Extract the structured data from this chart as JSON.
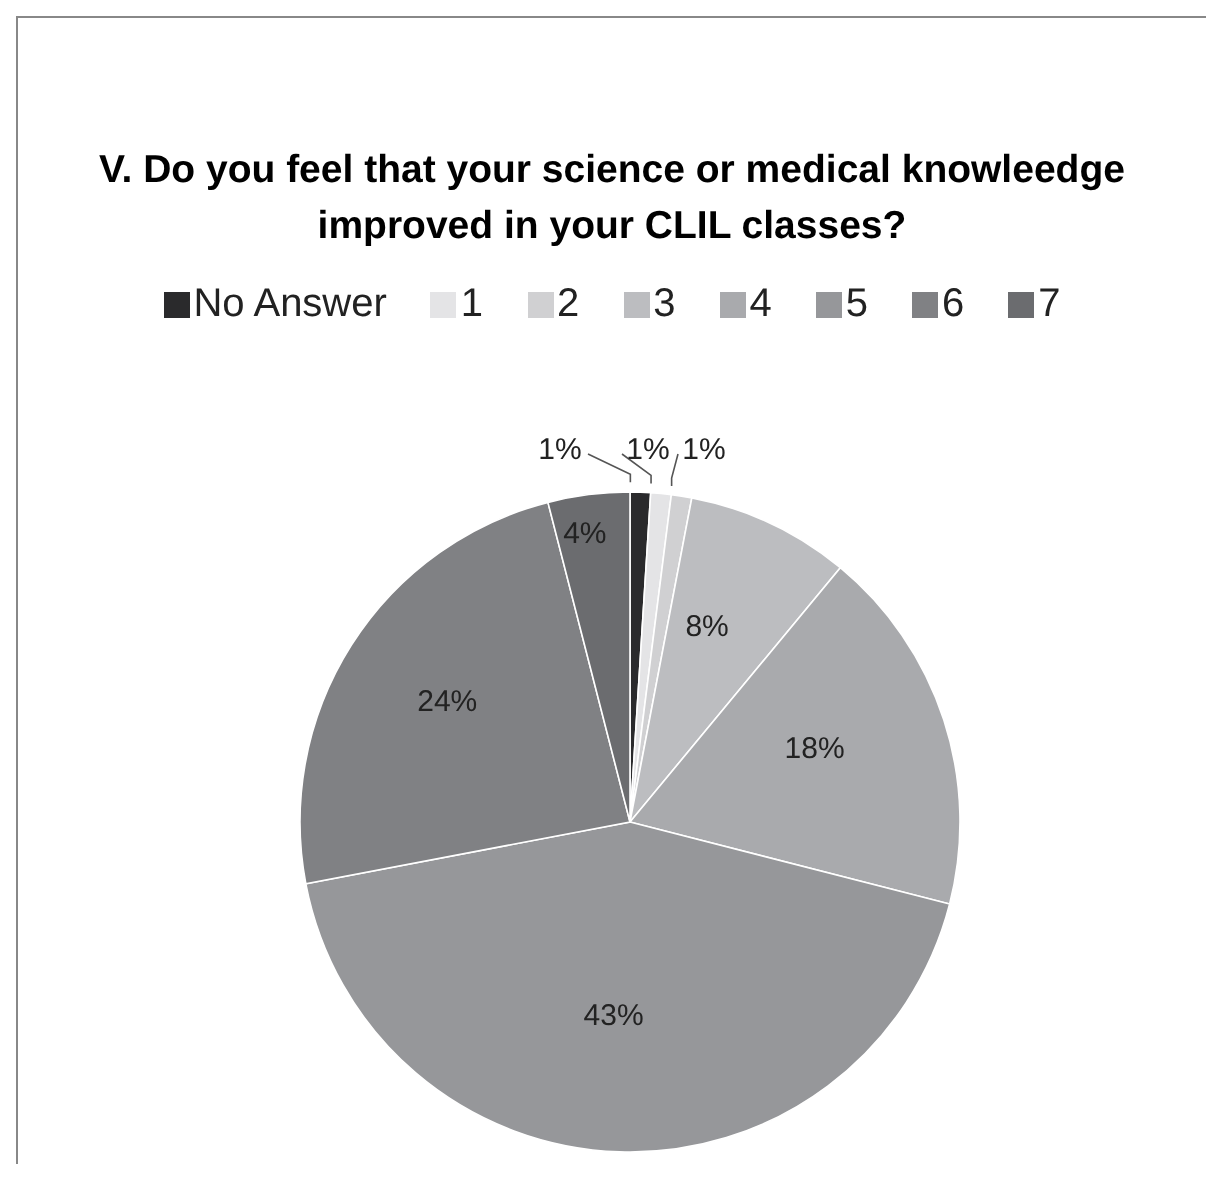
{
  "chart_data": {
    "type": "pie",
    "title": "V. Do you feel that your science or medical knowleedge improved in your CLIL classes?",
    "categories": [
      "No Answer",
      "1",
      "2",
      "3",
      "4",
      "5",
      "6",
      "7"
    ],
    "values": [
      1,
      1,
      1,
      8,
      18,
      43,
      24,
      4
    ],
    "colors": [
      "#2a2a2c",
      "#e4e4e6",
      "#d0d0d2",
      "#bcbdc0",
      "#a9aaad",
      "#96979a",
      "#808184",
      "#6b6c6f"
    ],
    "value_labels": [
      "1%",
      "1%",
      "1%",
      "8%",
      "18%",
      "43%",
      "24%",
      "4%"
    ],
    "legend": "top"
  }
}
